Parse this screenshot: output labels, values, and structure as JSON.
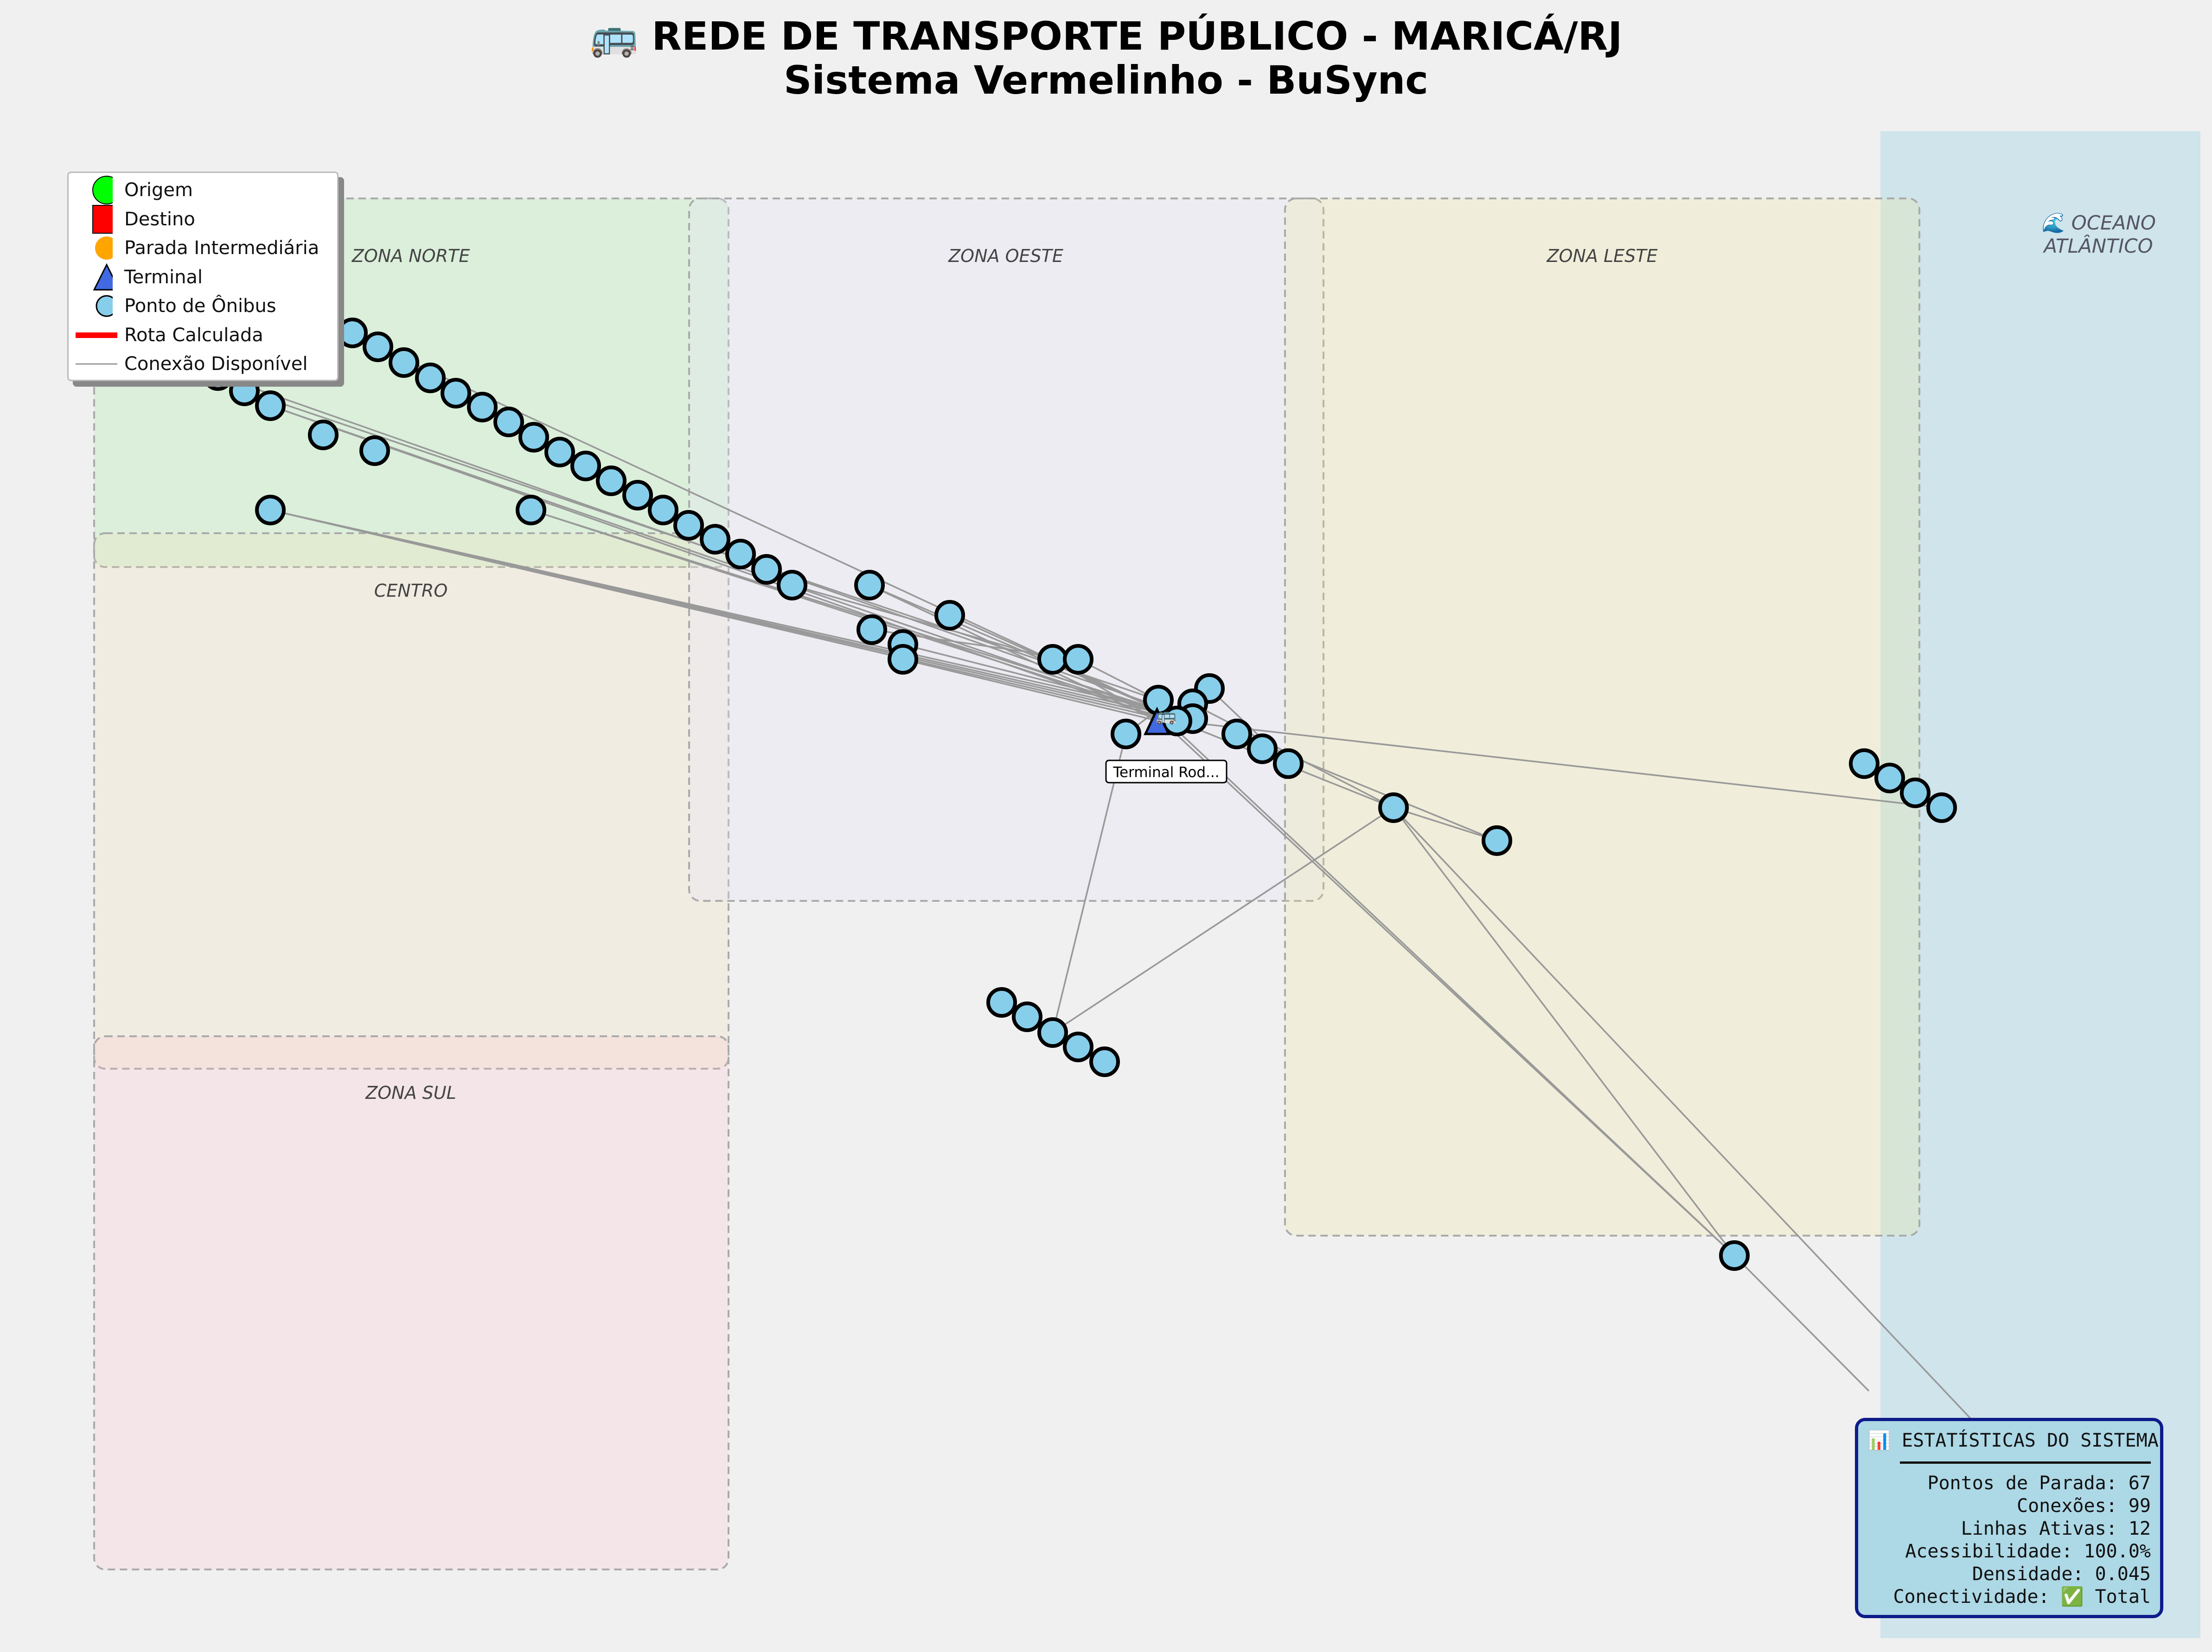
{
  "title": {
    "line1": "🚌 REDE DE TRANSPORTE PÚBLICO - MARICÁ/RJ",
    "line2": "Sistema Vermelinho - BuSync"
  },
  "zones": [
    {
      "id": "norte",
      "label": "ZONA NORTE",
      "color": "#90ee90"
    },
    {
      "id": "oeste",
      "label": "ZONA OESTE",
      "color": "#e6e6fa"
    },
    {
      "id": "leste",
      "label": "ZONA LESTE",
      "color": "#f0e68c"
    },
    {
      "id": "centro",
      "label": "CENTRO",
      "color": "#f5deb3"
    },
    {
      "id": "sul",
      "label": "ZONA SUL",
      "color": "#ffc0cb"
    }
  ],
  "ocean": {
    "line1": "🌊 OCEANO",
    "line2": "ATLÂNTICO",
    "color": "#add8e6"
  },
  "legend": [
    {
      "label": "Origem",
      "symbol": "circle",
      "color": "#00ff00"
    },
    {
      "label": "Destino",
      "symbol": "square",
      "color": "#ff0000"
    },
    {
      "label": "Parada Intermediária",
      "symbol": "circle",
      "color": "#ffa500"
    },
    {
      "label": "Terminal",
      "symbol": "triangle",
      "color": "#4169e1"
    },
    {
      "label": "Ponto de Ônibus",
      "symbol": "circle",
      "color": "#87ceeb"
    },
    {
      "label": "Rota Calculada",
      "symbol": "thick-line",
      "color": "#ff0000"
    },
    {
      "label": "Conexão Disponível",
      "symbol": "thin-line",
      "color": "#999999"
    }
  ],
  "terminal": {
    "label": "Terminal Rod...",
    "icon": "🚌",
    "color": "#4169e1"
  },
  "stats": {
    "title": "📊 ESTATÍSTICAS DO SISTEMA",
    "lines": [
      "Pontos de Parada: 67",
      "Conexões: 99",
      "Linhas Ativas: 12",
      "Acessibilidade: 100.0%",
      "Densidade: 0.045",
      "Conectividade: ✅ Total"
    ]
  },
  "colors": {
    "stop_fill": "#87ceeb",
    "stop_stroke": "#000000",
    "connection": "#999999",
    "stats_bg": "#add8e6",
    "stats_border": "#0d1b8a"
  }
}
